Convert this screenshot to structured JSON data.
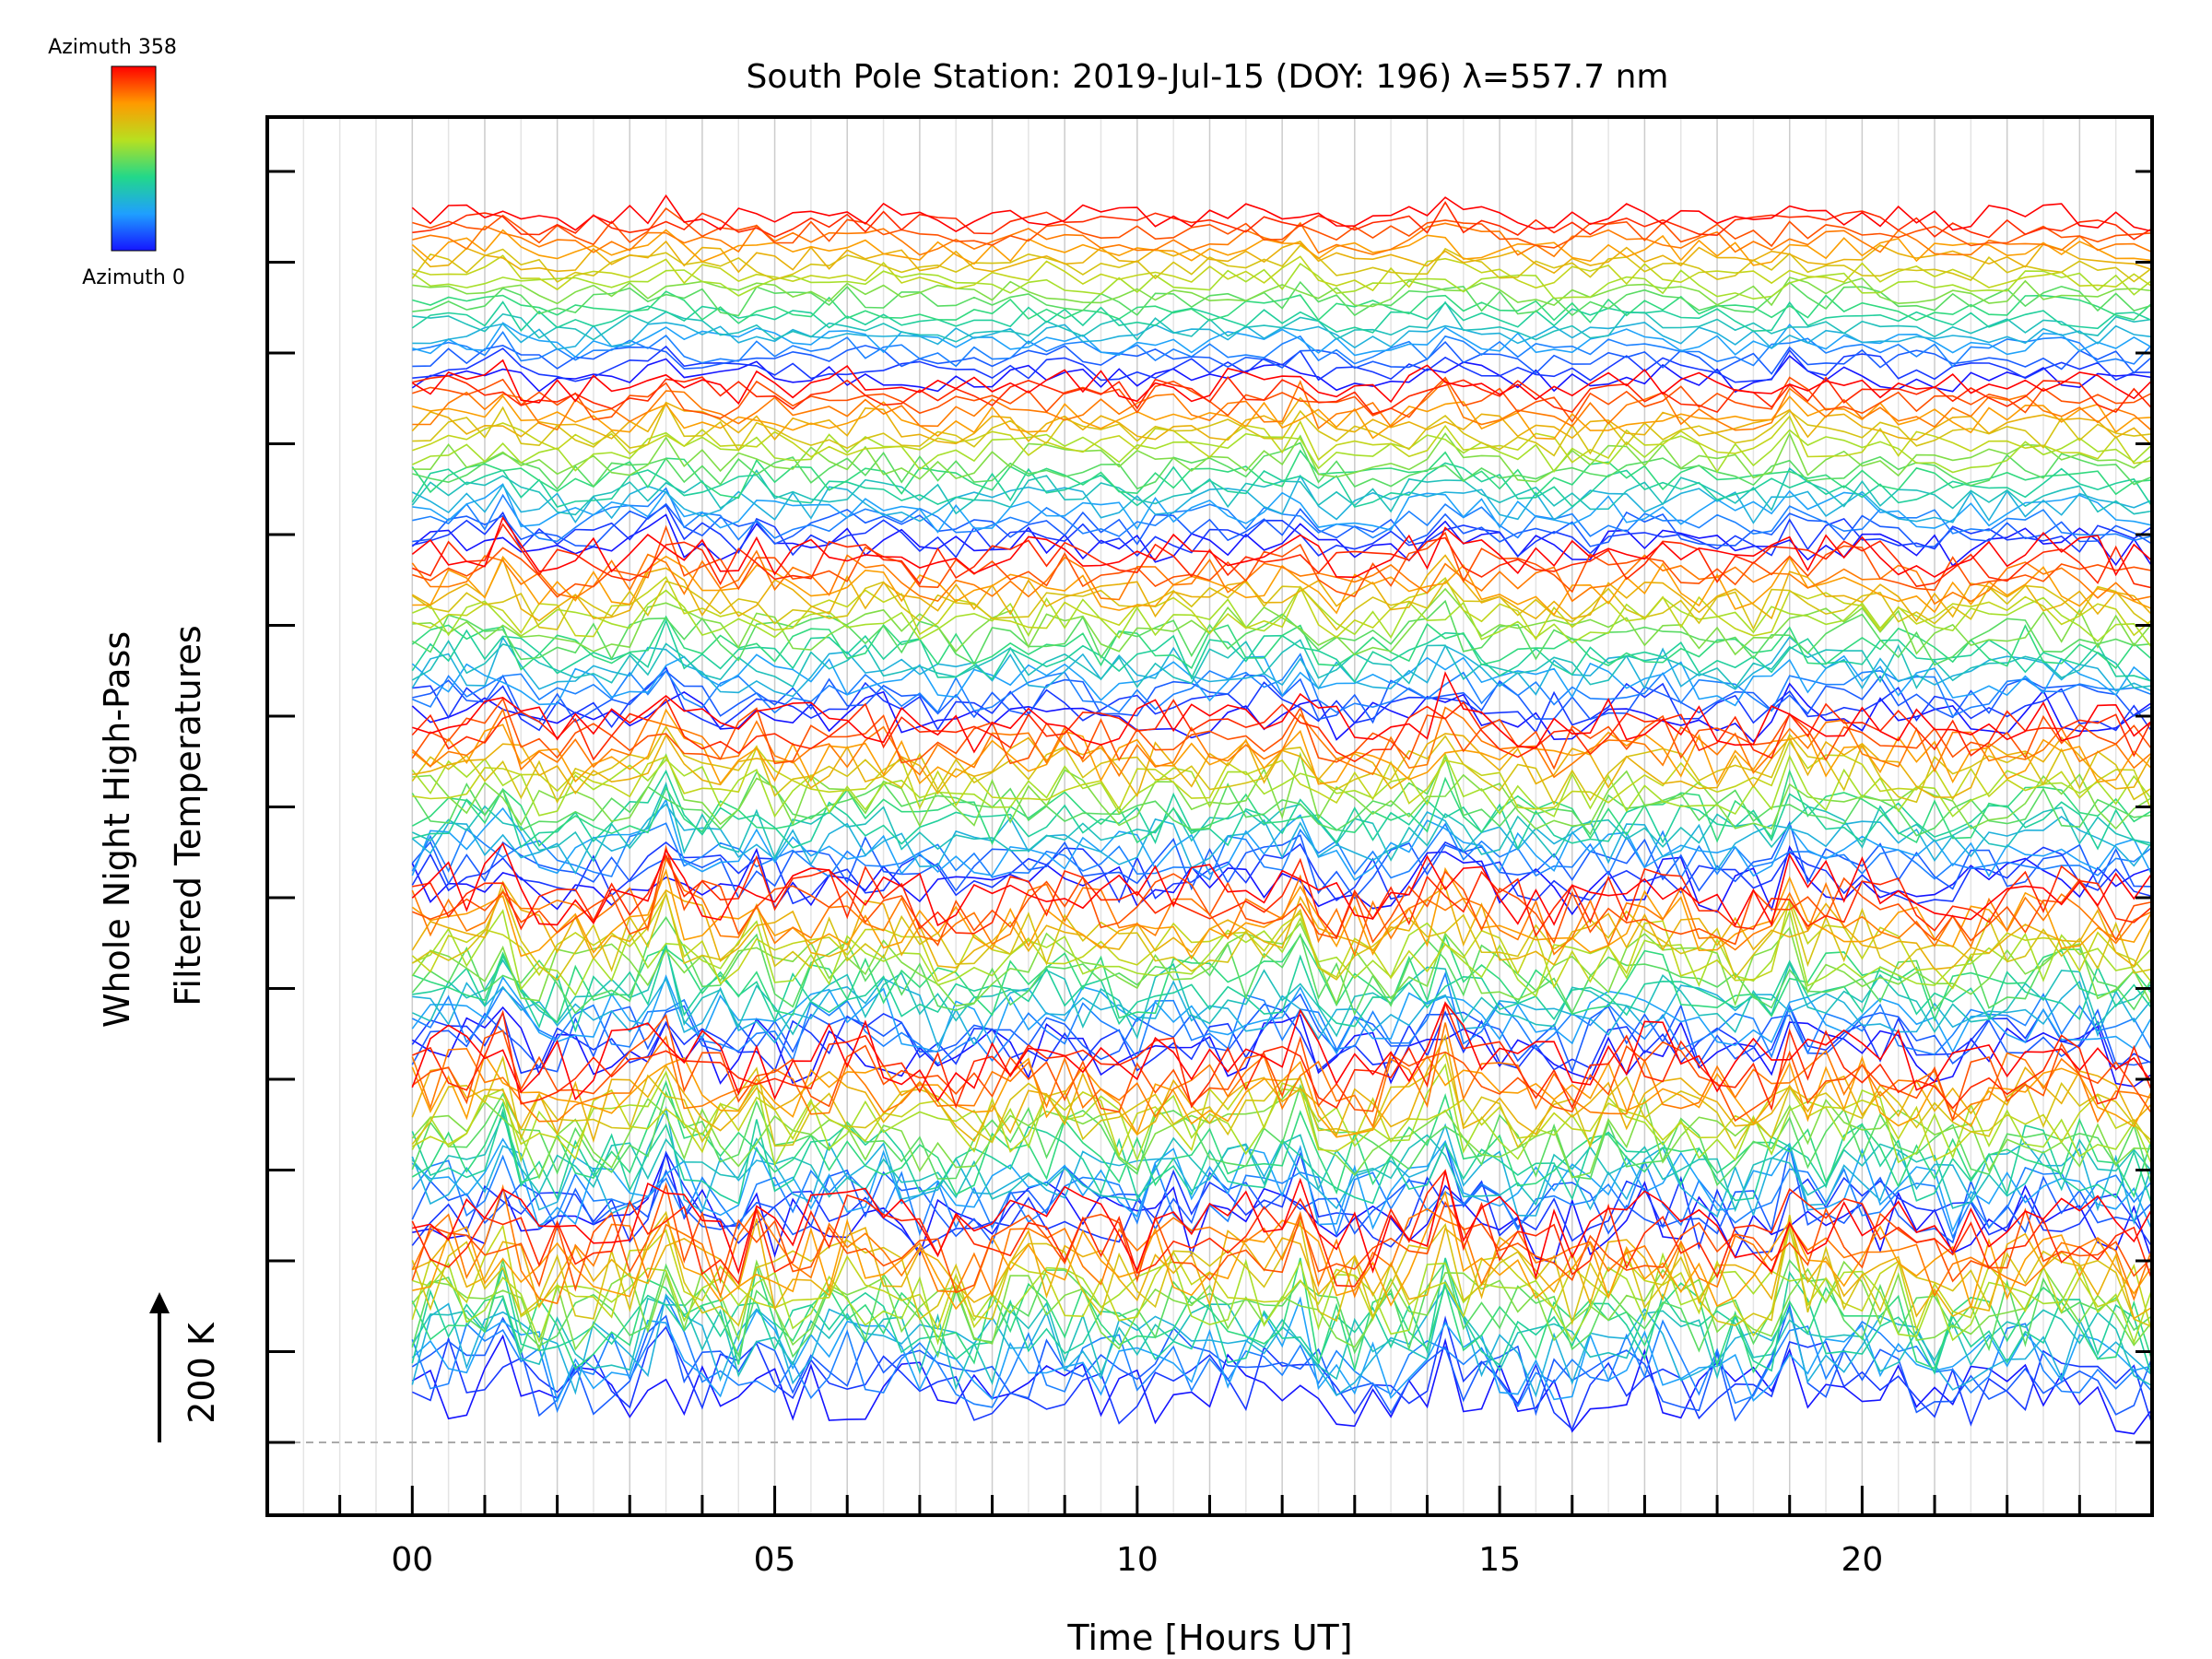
{
  "chart_data": {
    "type": "line",
    "title": "South Pole Station: 2019-Jul-15 (DOY: 196) λ=557.7 nm",
    "xlabel": "Time [Hours UT]",
    "ylabel_line1": "Whole Night High-Pass",
    "ylabel_line2": "Filtered Temperatures",
    "scale_label": "200 K",
    "xlim": [
      -2,
      24
    ],
    "x_ticks": [
      0,
      5,
      10,
      15,
      20
    ],
    "x_tick_labels": [
      "00",
      "05",
      "10",
      "15",
      "20"
    ],
    "grid": true,
    "colorbar": {
      "top_label": "Azimuth 358",
      "bottom_label": "Azimuth 0",
      "min": 0,
      "max": 358
    },
    "series_description": "Stacked high-pass filtered temperature traces, one per azimuth, colored by azimuth (blue=0 to red=358), offset vertically in groups.",
    "time_start": 0,
    "time_end": 24,
    "time_step": 0.25,
    "n_groups": 7,
    "traces_per_group": 20,
    "spike_times": [
      1.2,
      3.5,
      4.8,
      10.4,
      12.2,
      14.2,
      19.0
    ]
  }
}
